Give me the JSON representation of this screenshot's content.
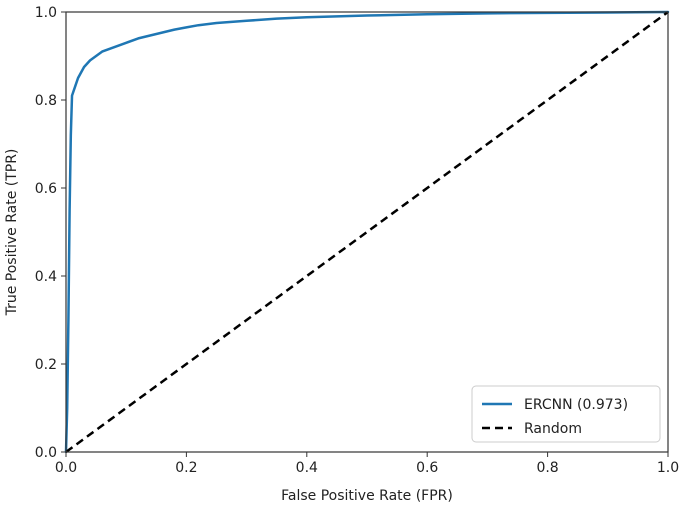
{
  "chart_data": {
    "type": "line",
    "title": "",
    "xlabel": "False Positive Rate (FPR)",
    "ylabel": "True Positive Rate (TPR)",
    "xlim": [
      0.0,
      1.0
    ],
    "ylim": [
      0.0,
      1.0
    ],
    "x_ticks": [
      0.0,
      0.2,
      0.4,
      0.6,
      0.8,
      1.0
    ],
    "y_ticks": [
      0.0,
      0.2,
      0.4,
      0.6,
      0.8,
      1.0
    ],
    "x_tick_labels": [
      "0.0",
      "0.2",
      "0.4",
      "0.6",
      "0.8",
      "1.0"
    ],
    "y_tick_labels": [
      "0.0",
      "0.2",
      "0.4",
      "0.6",
      "0.8",
      "1.0"
    ],
    "grid": false,
    "legend_position": "bottom-right",
    "series": [
      {
        "name": "ERCNN (0.973)",
        "color": "#1f77b4",
        "style": "solid",
        "x": [
          0.0,
          0.002,
          0.004,
          0.006,
          0.008,
          0.01,
          0.015,
          0.02,
          0.03,
          0.04,
          0.05,
          0.06,
          0.08,
          0.1,
          0.12,
          0.15,
          0.18,
          0.2,
          0.22,
          0.25,
          0.3,
          0.35,
          0.4,
          0.45,
          0.5,
          0.6,
          0.7,
          0.8,
          0.9,
          1.0
        ],
        "y": [
          0.0,
          0.1,
          0.3,
          0.55,
          0.72,
          0.81,
          0.83,
          0.85,
          0.875,
          0.89,
          0.9,
          0.91,
          0.92,
          0.93,
          0.94,
          0.95,
          0.96,
          0.965,
          0.97,
          0.975,
          0.98,
          0.985,
          0.988,
          0.99,
          0.992,
          0.995,
          0.997,
          0.998,
          0.999,
          1.0
        ]
      },
      {
        "name": "Random",
        "color": "#000000",
        "style": "dashed",
        "x": [
          0.0,
          1.0
        ],
        "y": [
          0.0,
          1.0
        ]
      }
    ]
  }
}
